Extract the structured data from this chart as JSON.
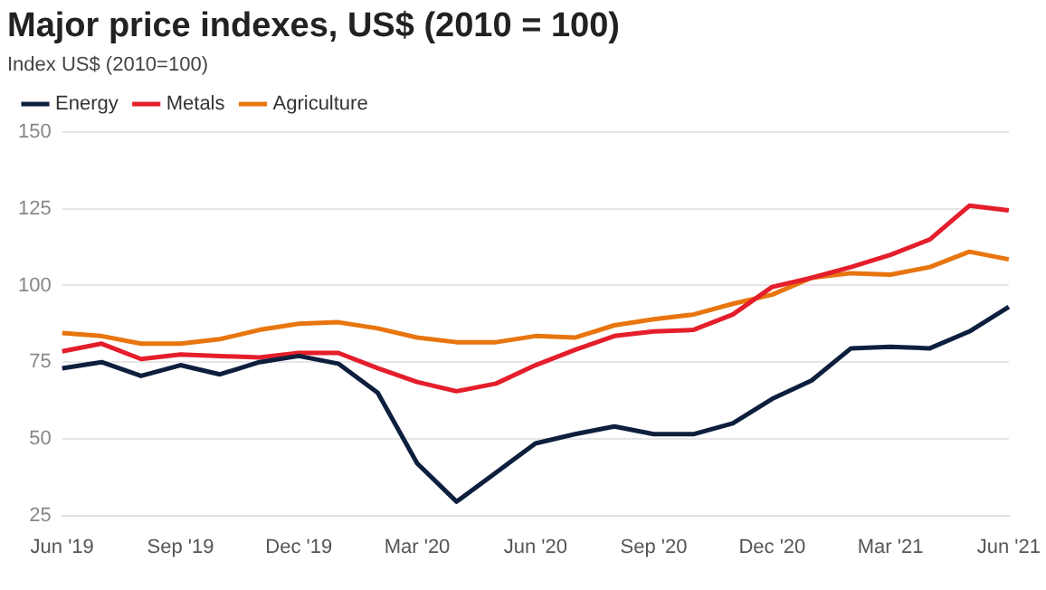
{
  "chart_data": {
    "type": "line",
    "title": "Major price indexes, US$ (2010 = 100)",
    "ylabel": "Index US$ (2010=100)",
    "categories": [
      "Jun '19",
      null,
      null,
      "Sep '19",
      null,
      null,
      "Dec '19",
      null,
      null,
      "Mar '20",
      null,
      null,
      "Jun '20",
      null,
      null,
      "Sep '20",
      null,
      null,
      "Dec '20",
      null,
      null,
      "Mar '21",
      null,
      null,
      "Jun '21"
    ],
    "series": [
      {
        "name": "Energy",
        "color": "#0e1f3e",
        "values": [
          73,
          75,
          70.5,
          74,
          71,
          75,
          77,
          74.5,
          65,
          42,
          29.5,
          39,
          48.5,
          51.5,
          54,
          51.5,
          51.5,
          55,
          63,
          69,
          79.5,
          80,
          79.5,
          85,
          93
        ]
      },
      {
        "name": "Metals",
        "color": "#e41e2b",
        "values": [
          78.5,
          81,
          76,
          77.5,
          77,
          76.5,
          78,
          78,
          73,
          68.5,
          65.5,
          68,
          74,
          79,
          83.5,
          85,
          85.5,
          90.5,
          99.5,
          102.5,
          106,
          110,
          115,
          126,
          124.5
        ]
      },
      {
        "name": "Agriculture",
        "color": "#e8750e",
        "values": [
          84.5,
          83.5,
          81,
          81,
          82.5,
          85.5,
          87.5,
          88,
          86,
          83,
          81.5,
          81.5,
          83.5,
          83,
          87,
          89,
          90.5,
          94,
          97,
          102.5,
          104,
          103.5,
          106,
          111,
          108.5
        ]
      }
    ],
    "ylim": [
      25,
      150
    ],
    "yticks": [
      25,
      50,
      75,
      100,
      125,
      150
    ],
    "grid": "y",
    "legend": "top left",
    "marker": "none",
    "line_style": "solid"
  }
}
